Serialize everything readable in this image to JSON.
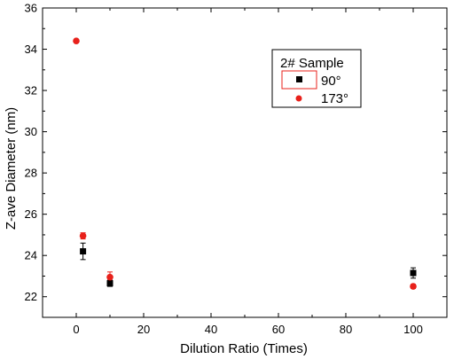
{
  "chart_data": {
    "type": "scatter",
    "xlabel": "Dilution Ratio (Times)",
    "ylabel": "Z-ave Diameter (nm)",
    "xlim": [
      -10,
      110
    ],
    "ylim": [
      21,
      36
    ],
    "xticks": [
      0,
      20,
      40,
      60,
      80,
      100
    ],
    "yticks": [
      22,
      24,
      26,
      28,
      30,
      32,
      34,
      36
    ],
    "grid": false,
    "legend": {
      "title": "2# Sample",
      "placement": "top-right"
    },
    "series": [
      {
        "name": "90°",
        "marker": "square",
        "color": "#000000",
        "points": [
          {
            "x": 2,
            "y": 24.2,
            "err": 0.4
          },
          {
            "x": 10,
            "y": 22.65,
            "err": 0.15
          },
          {
            "x": 100,
            "y": 23.15,
            "err": 0.25
          }
        ]
      },
      {
        "name": "173°",
        "marker": "circle",
        "color": "#e8211b",
        "points": [
          {
            "x": 0,
            "y": 34.4,
            "err": 0.05
          },
          {
            "x": 2,
            "y": 24.95,
            "err": 0.15
          },
          {
            "x": 10,
            "y": 22.95,
            "err": 0.25
          },
          {
            "x": 100,
            "y": 22.5,
            "err": 0.1
          }
        ]
      }
    ],
    "legend_highlight_color": "#e8211b"
  }
}
